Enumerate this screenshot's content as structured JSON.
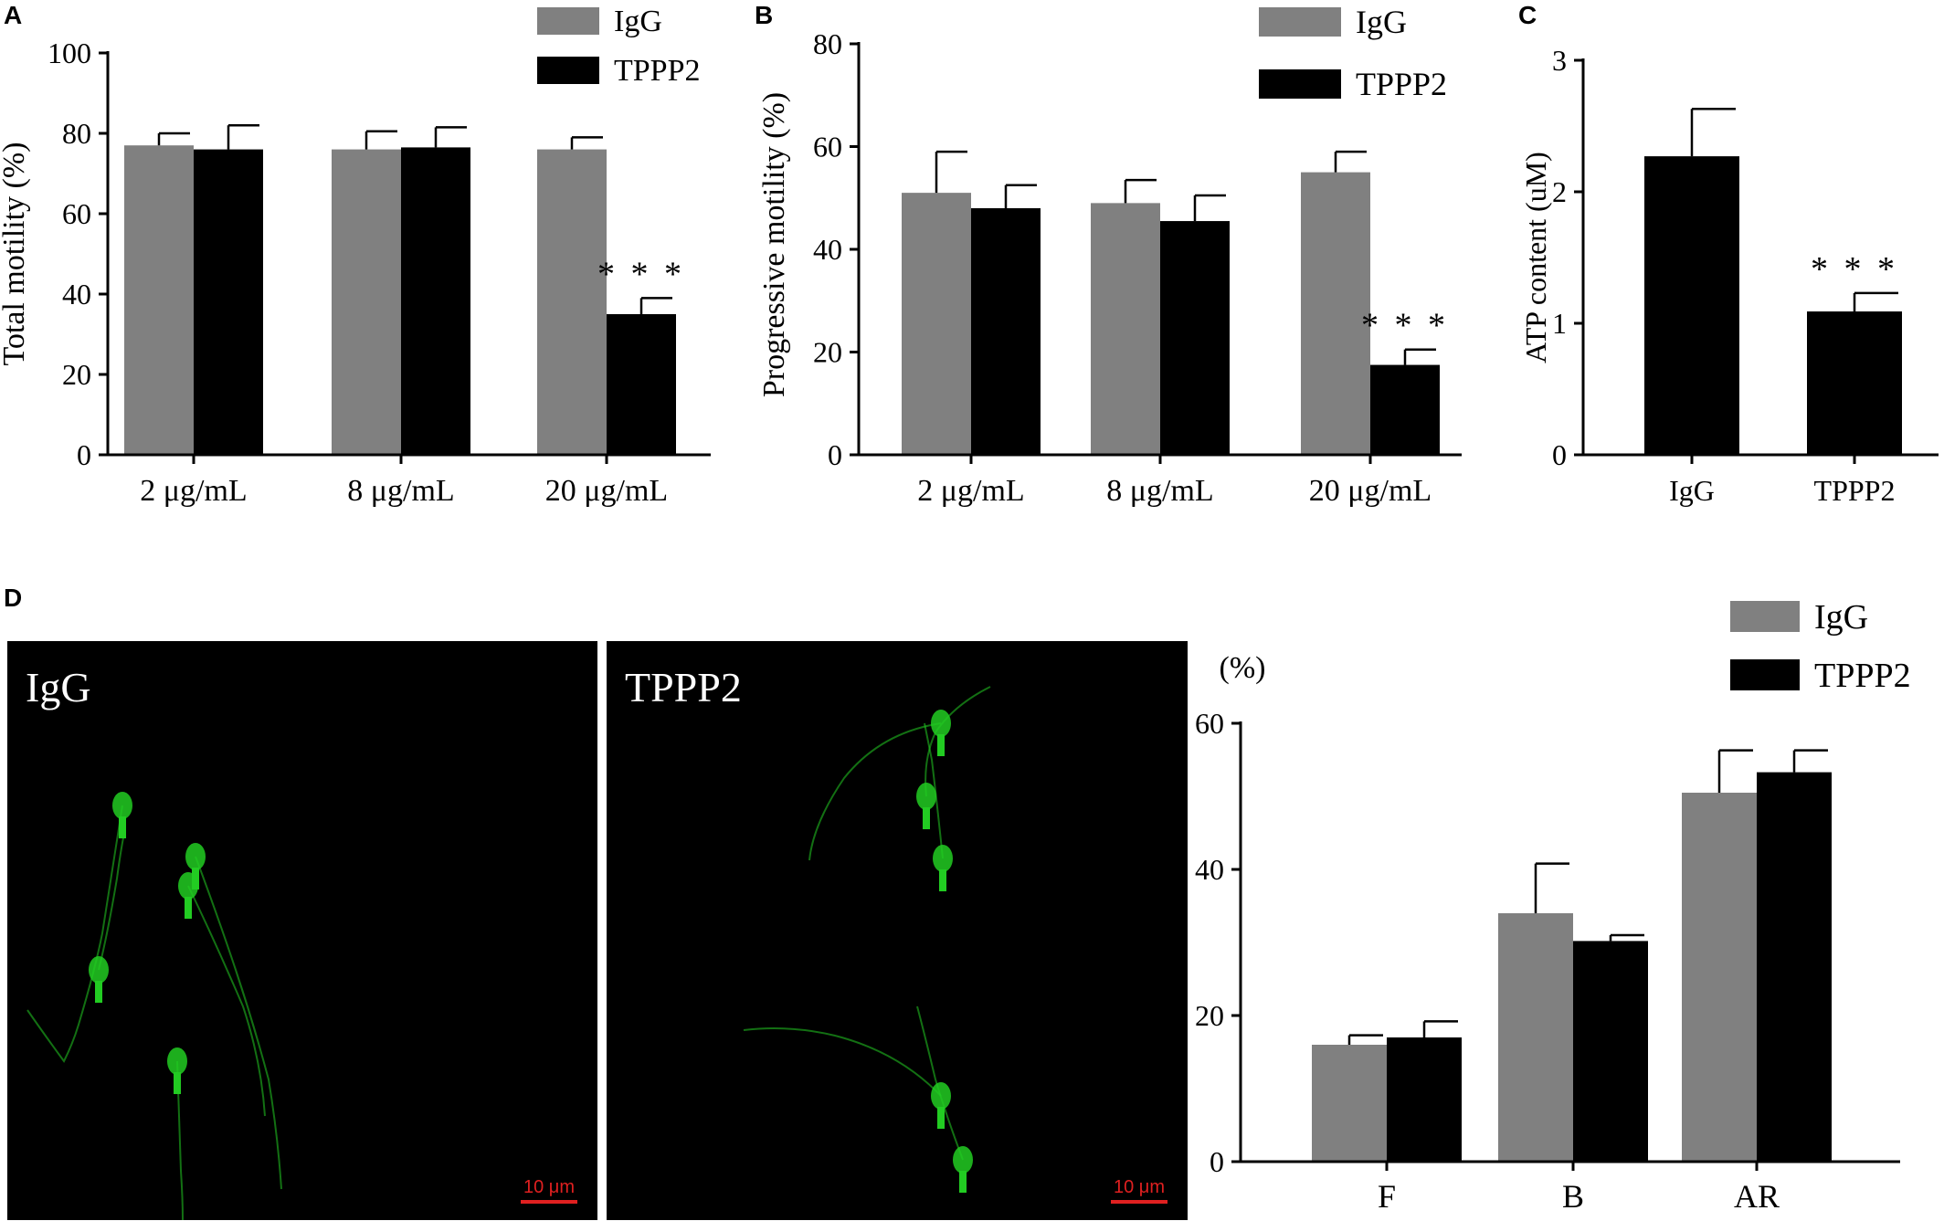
{
  "panels": {
    "a": {
      "letter": "A"
    },
    "b": {
      "letter": "B"
    },
    "c": {
      "letter": "C"
    },
    "d": {
      "letter": "D"
    }
  },
  "micrographs": [
    {
      "label": "IgG",
      "scale_bar": "10 μm",
      "background": "#000000",
      "stain_color": "#22cc22",
      "scale_color": "#e02020"
    },
    {
      "label": "TPPP2",
      "scale_bar": "10 μm",
      "background": "#000000",
      "stain_color": "#22cc22",
      "scale_color": "#e02020"
    }
  ],
  "colors": {
    "igg": "#808080",
    "tppp2": "#000000"
  },
  "chart_data": [
    {
      "panel": "A",
      "type": "bar",
      "categories": [
        "2 μg/mL",
        "8 μg/mL",
        "20 μg/mL"
      ],
      "series": [
        {
          "name": "IgG",
          "values": [
            77,
            76,
            76
          ],
          "errors": [
            3,
            4.5,
            3
          ],
          "annotations": [
            "",
            "",
            ""
          ]
        },
        {
          "name": "TPPP2",
          "values": [
            76,
            76.5,
            35
          ],
          "errors": [
            6,
            5,
            4
          ],
          "annotations": [
            "",
            "",
            "* * *"
          ]
        }
      ],
      "ylabel": "Total motility (%)",
      "xlabel": "",
      "ylim": [
        0,
        100
      ],
      "yticks": [
        0,
        20,
        40,
        60,
        80,
        100
      ],
      "legend": "top-right",
      "grid": false
    },
    {
      "panel": "B",
      "type": "bar",
      "categories": [
        "2 μg/mL",
        "8 μg/mL",
        "20 μg/mL"
      ],
      "series": [
        {
          "name": "IgG",
          "values": [
            51,
            49,
            55
          ],
          "errors": [
            8,
            4.5,
            4
          ],
          "annotations": [
            "",
            "",
            ""
          ]
        },
        {
          "name": "TPPP2",
          "values": [
            48,
            45.5,
            17.5
          ],
          "errors": [
            4.5,
            5,
            3
          ],
          "annotations": [
            "",
            "",
            "* * *"
          ]
        }
      ],
      "ylabel": "Progressive motility (%)",
      "xlabel": "",
      "ylim": [
        0,
        80
      ],
      "yticks": [
        0,
        20,
        40,
        60,
        80
      ],
      "legend": "top-right",
      "grid": false
    },
    {
      "panel": "C",
      "type": "bar",
      "categories": [
        "IgG",
        "TPPP2"
      ],
      "values": [
        2.27,
        1.09
      ],
      "errors": [
        0.36,
        0.14
      ],
      "annotations": [
        "",
        "* * *"
      ],
      "ylabel": "ATP content (uM)",
      "xlabel": "",
      "ylim": [
        0,
        3
      ],
      "yticks": [
        0,
        1,
        2,
        3
      ],
      "legend": "none",
      "grid": false
    },
    {
      "panel": "D",
      "type": "bar",
      "categories": [
        "F",
        "B",
        "AR"
      ],
      "series": [
        {
          "name": "IgG",
          "values": [
            16,
            34,
            50.5
          ],
          "errors": [
            1.3,
            6.8,
            5.8
          ],
          "annotations": [
            "",
            "",
            ""
          ]
        },
        {
          "name": "TPPP2",
          "values": [
            17,
            30.2,
            53.3
          ],
          "errors": [
            2.2,
            0.8,
            3
          ],
          "annotations": [
            "",
            "",
            ""
          ]
        }
      ],
      "ylabel": "(%)",
      "xlabel": "",
      "ylim": [
        0,
        60
      ],
      "yticks": [
        0,
        20,
        40,
        60
      ],
      "legend": "top-right",
      "grid": false
    }
  ]
}
